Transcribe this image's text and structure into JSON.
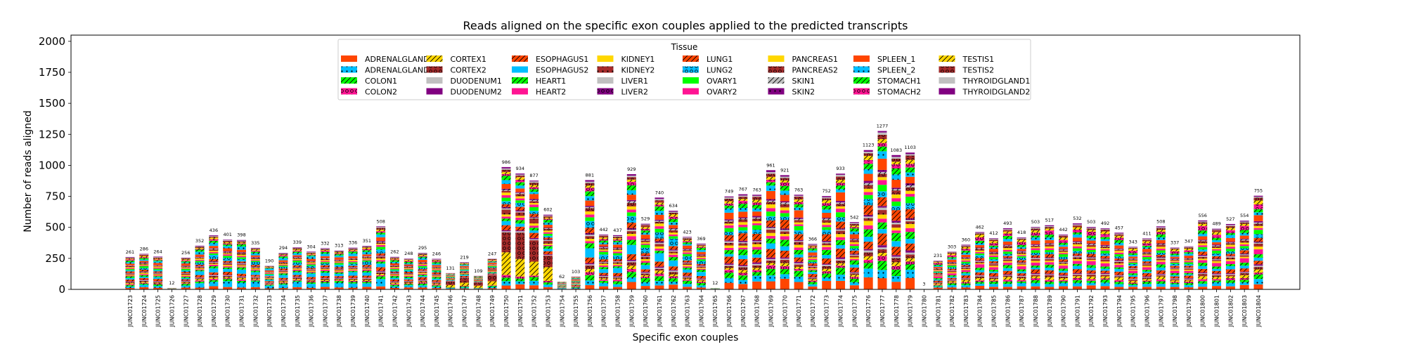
{
  "chart_data": {
    "type": "bar",
    "stacked": true,
    "title": "Reads aligned on the specific exon couples applied to the predicted transcripts",
    "xlabel": "Specific exon couples",
    "ylabel": "Number of reads aligned",
    "ylim": [
      0,
      2050
    ],
    "yticks": [
      0,
      250,
      500,
      750,
      1000,
      1250,
      1500,
      1750,
      2000
    ],
    "grid": false,
    "legend": {
      "title": "Tissue",
      "placement": "top-center",
      "ncol": 8
    },
    "categories": [
      "JUNC01723",
      "JUNC01724",
      "JUNC01725",
      "JUNC01726",
      "JUNC01727",
      "JUNC01728",
      "JUNC01729",
      "JUNC01730",
      "JUNC01731",
      "JUNC01732",
      "JUNC01733",
      "JUNC01734",
      "JUNC01735",
      "JUNC01736",
      "JUNC01737",
      "JUNC01738",
      "JUNC01739",
      "JUNC01740",
      "JUNC01741",
      "JUNC01742",
      "JUNC01743",
      "JUNC01744",
      "JUNC01745",
      "JUNC01746",
      "JUNC01747",
      "JUNC01748",
      "JUNC01749",
      "JUNC01750",
      "JUNC01751",
      "JUNC01752",
      "JUNC01753",
      "JUNC01754",
      "JUNC01755",
      "JUNC01756",
      "JUNC01757",
      "JUNC01758",
      "JUNC01759",
      "JUNC01760",
      "JUNC01761",
      "JUNC01762",
      "JUNC01763",
      "JUNC01764",
      "JUNC01765",
      "JUNC01766",
      "JUNC01767",
      "JUNC01768",
      "JUNC01769",
      "JUNC01770",
      "JUNC01771",
      "JUNC01772",
      "JUNC01773",
      "JUNC01774",
      "JUNC01775",
      "JUNC01776",
      "JUNC01777",
      "JUNC01778",
      "JUNC01779",
      "JUNC01780",
      "JUNC01781",
      "JUNC01782",
      "JUNC01783",
      "JUNC01784",
      "JUNC01785",
      "JUNC01786",
      "JUNC01787",
      "JUNC01788",
      "JUNC01789",
      "JUNC01790",
      "JUNC01791",
      "JUNC01792",
      "JUNC01793",
      "JUNC01794",
      "JUNC01795",
      "JUNC01796",
      "JUNC01797",
      "JUNC01798",
      "JUNC01799",
      "JUNC01800",
      "JUNC01801",
      "JUNC01802",
      "JUNC01803",
      "JUNC01804"
    ],
    "totals": [
      261,
      286,
      264,
      12,
      256,
      352,
      436,
      401,
      398,
      335,
      190,
      294,
      339,
      304,
      332,
      313,
      336,
      351,
      508,
      262,
      248,
      295,
      246,
      131,
      219,
      109,
      247,
      986,
      934,
      877,
      602,
      62,
      103,
      881,
      442,
      437,
      929,
      529,
      740,
      634,
      423,
      369,
      12,
      749,
      767,
      763,
      961,
      921,
      763,
      366,
      752,
      933,
      542,
      1123,
      1277,
      1083,
      1103,
      3,
      231,
      303,
      360,
      462,
      412,
      493,
      418,
      503,
      517,
      442,
      532,
      503,
      492,
      457,
      343,
      411,
      508,
      337,
      347,
      556,
      489,
      527,
      554,
      755
    ],
    "series_names": [
      "ADRENALGLAND1",
      "ADRENALGLAND2",
      "COLON1",
      "COLON2",
      "CORTEX1",
      "CORTEX2",
      "DUODENUM1",
      "DUODENUM2",
      "ESOPHAGUS1",
      "ESOPHAGUS2",
      "HEART1",
      "HEART2",
      "KIDNEY1",
      "KIDNEY2",
      "LIVER1",
      "LIVER2",
      "LUNG1",
      "LUNG2",
      "OVARY1",
      "OVARY2",
      "PANCREAS1",
      "PANCREAS2",
      "SKIN1",
      "SKIN2",
      "SPLEEN_1",
      "SPLEEN_2",
      "STOMACH1",
      "STOMACH2",
      "TESTIS1",
      "TESTIS2",
      "THYROIDGLAND1",
      "THYROIDGLAND2"
    ],
    "series_colors": [
      "#ff4500",
      "#00bfff",
      "#00ff00",
      "#ff1493",
      "#ffd700",
      "#a52a2a",
      "#c0c0c0",
      "#800080",
      "#ff4500",
      "#00bfff",
      "#00ff00",
      "#ff1493",
      "#ffd700",
      "#a52a2a",
      "#c0c0c0",
      "#800080",
      "#ff4500",
      "#00bfff",
      "#00ff00",
      "#ff1493",
      "#ffd700",
      "#a52a2a",
      "#c0c0c0",
      "#800080",
      "#ff4500",
      "#00bfff",
      "#00ff00",
      "#ff1493",
      "#ffd700",
      "#a52a2a",
      "#c0c0c0",
      "#800080"
    ],
    "series_hatches": [
      "none",
      "dot",
      "slash",
      "ring",
      "slash",
      "ring",
      "none",
      "none",
      "slash",
      "none",
      "slash",
      "none",
      "none",
      "dot",
      "none",
      "ring",
      "slash",
      "ring",
      "none",
      "none",
      "none",
      "ring",
      "slash",
      "dot",
      "none",
      "dot",
      "slash",
      "ring",
      "slash",
      "ring",
      "none",
      "none"
    ],
    "notes_values": "stack composition per bar estimated visually; bar totals read from data labels"
  }
}
